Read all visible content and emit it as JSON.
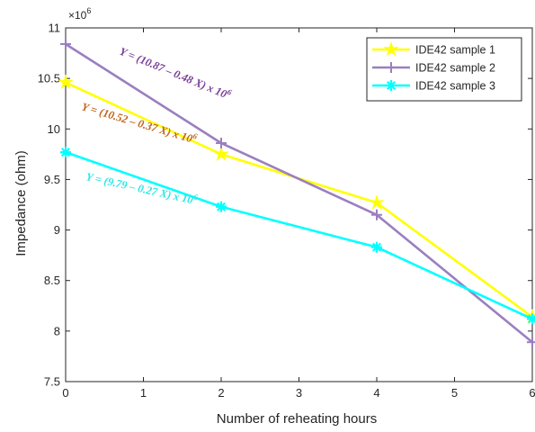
{
  "chart_data": {
    "type": "line",
    "xlabel": "Number of reheating hours",
    "ylabel": "Impedance (ohm)",
    "y_multiplier": "×10",
    "y_exponent": "6",
    "xlim": [
      0,
      6
    ],
    "ylim": [
      7.5,
      11
    ],
    "x_ticks": [
      "0",
      "1",
      "2",
      "3",
      "4",
      "5",
      "6"
    ],
    "y_ticks": [
      "7.5",
      "8",
      "8.5",
      "9",
      "9.5",
      "10",
      "10.5",
      "11"
    ],
    "grid": false,
    "legend_position": "top-right",
    "x": [
      0,
      2,
      4,
      6
    ],
    "series": [
      {
        "name": "IDE42 sample 1",
        "color": "#ffff00",
        "marker": "star",
        "values": [
          10.46,
          9.75,
          9.27,
          8.14
        ]
      },
      {
        "name": "IDE42 sample 2",
        "color": "#9b7fc0",
        "marker": "plus",
        "values": [
          10.84,
          9.86,
          9.15,
          7.89
        ]
      },
      {
        "name": "IDE42 sample 3",
        "color": "#00ffff",
        "marker": "asterisk",
        "values": [
          9.77,
          9.23,
          8.83,
          8.12
        ]
      }
    ],
    "annotations": [
      {
        "text": "Y = (10.87 – 0.48 X) x 10",
        "sup": "6",
        "color": "#7a3f99"
      },
      {
        "text": "Y = (10.52 – 0.37 X) x 10",
        "sup": "6",
        "color": "#c0651e"
      },
      {
        "text": "Y = (9.79 – 0.27 X) x 10",
        "sup": "6",
        "color": "#2ee6e6"
      }
    ]
  }
}
